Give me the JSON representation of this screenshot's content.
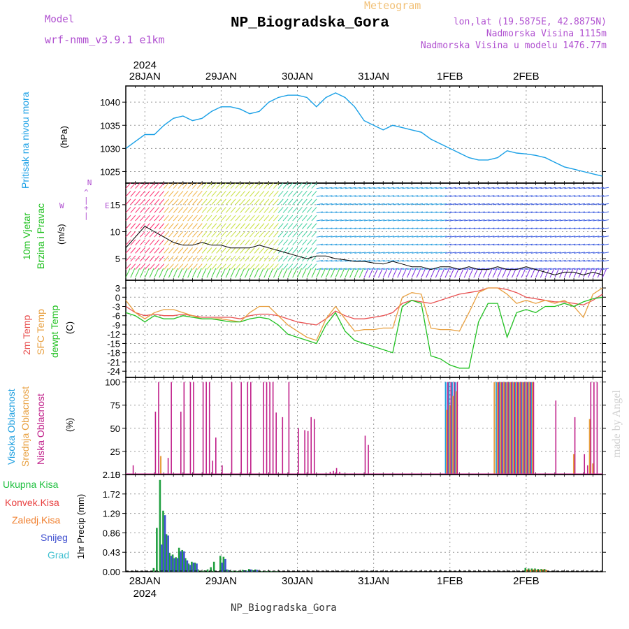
{
  "header": {
    "model_label": "Model",
    "model_name": "wrf-nmm_v3.9.1 e1km",
    "meteogram_label": "Meteogram",
    "station_title": "NP_Biogradska_Gora",
    "lonlat": "lon,lat (19.5875E, 42.8875N)",
    "altitude": "Nadmorska Visina 1115m",
    "model_altitude": "Nadmorska Visina u modelu 1476.77m",
    "footer_station": "NP_Biogradska_Gora",
    "watermark": "made by Angel"
  },
  "time_axis": {
    "year_label": "2024",
    "day_labels": [
      "28JAN",
      "29JAN",
      "30JAN",
      "31JAN",
      "1FEB",
      "2FEB"
    ],
    "day_positions_hours": [
      6,
      30,
      54,
      78,
      102,
      126
    ],
    "range_hours": [
      0,
      150
    ]
  },
  "panel_labels": {
    "pressure": {
      "name": "Pritisak na nivou mora",
      "unit": "(hPa)"
    },
    "wind": {
      "name1": "10m Vjetar",
      "name2": "Brzina i Pravac",
      "unit": "(m/s)",
      "compass_n": "N",
      "compass_e": "E",
      "compass_w": "W"
    },
    "temperature": {
      "name1": "2m Temp",
      "name2": "SFC Temp",
      "name3": "dewpt Temp",
      "unit": "(C)"
    },
    "cloud": {
      "name1": "Visoka Oblacnost",
      "name2": "Srednja Oblacnost",
      "name3": "Niska Oblacnost",
      "unit": "(%)"
    },
    "precip": {
      "names": [
        "Ukupna Kisa",
        "Konvek.Kisa",
        "Zaledj.Kisa",
        "Snijeg",
        "Grad"
      ],
      "unit": "1hr Precip (mm)"
    }
  },
  "colors": {
    "pressure": "#1aa0e6",
    "temp2m": "#e85050",
    "sfc": "#e8a040",
    "dewpt": "#20c020",
    "cloud_high": "#20a0e0",
    "cloud_mid": "#e8a040",
    "cloud_low": "#c0208a",
    "precip_total": "#20a040",
    "precip_conv": "#e84040",
    "precip_frz": "#f08030",
    "precip_snow": "#4050d0",
    "precip_hail": "#40c0d0"
  },
  "chart_data": [
    {
      "type": "line",
      "id": "pressure",
      "title": "Pritisak na nivou mora",
      "ylabel": "(hPa)",
      "ylim": [
        1022.5,
        1043.5
      ],
      "yticks": [
        1025,
        1030,
        1035,
        1040
      ],
      "grid": true,
      "series": [
        {
          "name": "Pritisak na nivou mora",
          "x": [
            0,
            3,
            6,
            9,
            12,
            15,
            18,
            21,
            24,
            27,
            30,
            33,
            36,
            39,
            42,
            45,
            48,
            51,
            54,
            57,
            60,
            63,
            66,
            69,
            72,
            75,
            78,
            81,
            84,
            87,
            90,
            93,
            96,
            99,
            102,
            105,
            108,
            111,
            114,
            117,
            120,
            123,
            126,
            129,
            132,
            135,
            138,
            141,
            144,
            147,
            150
          ],
          "y": [
            1030.0,
            1031.5,
            1033.0,
            1033.0,
            1035.0,
            1036.5,
            1037.0,
            1036.0,
            1036.5,
            1038.0,
            1039.0,
            1039.0,
            1038.5,
            1037.5,
            1038.0,
            1040.0,
            1041.0,
            1041.5,
            1041.5,
            1041.0,
            1039.0,
            1041.0,
            1042.0,
            1041.0,
            1039.0,
            1036.0,
            1035.0,
            1034.0,
            1035.0,
            1034.5,
            1034.0,
            1033.5,
            1032.0,
            1031.0,
            1030.0,
            1029.0,
            1028.0,
            1027.5,
            1027.5,
            1028.0,
            1029.5,
            1029.0,
            1028.8,
            1028.5,
            1028.0,
            1027.0,
            1026.0,
            1025.5,
            1025.0,
            1024.5,
            1024.0
          ]
        }
      ]
    },
    {
      "type": "line",
      "id": "wind",
      "title": "10m Vjetar Brzina i Pravac",
      "ylabel": "(m/s)",
      "ylim": [
        1,
        19
      ],
      "yticks": [
        5,
        10,
        15
      ],
      "grid": true,
      "series": [
        {
          "name": "10m Vjetar",
          "x": [
            0,
            3,
            6,
            9,
            12,
            15,
            18,
            21,
            24,
            27,
            30,
            33,
            36,
            39,
            42,
            45,
            48,
            51,
            54,
            57,
            60,
            63,
            66,
            69,
            72,
            75,
            78,
            81,
            84,
            87,
            90,
            93,
            96,
            99,
            102,
            105,
            108,
            111,
            114,
            117,
            120,
            123,
            126,
            129,
            132,
            135,
            138,
            141,
            144,
            147,
            150
          ],
          "y": [
            7,
            9,
            11,
            10,
            9,
            8,
            7.5,
            7.5,
            8,
            7.5,
            7.5,
            7,
            7,
            7,
            7.5,
            7,
            6.5,
            6,
            5.5,
            5,
            5.5,
            5.5,
            5,
            4.8,
            4.5,
            4.5,
            4.2,
            4,
            4.5,
            4,
            3.5,
            3.5,
            3,
            3.5,
            3.5,
            3,
            3.5,
            3,
            3,
            3.5,
            3,
            3,
            3.5,
            3,
            2.5,
            2,
            2.5,
            2.5,
            2,
            2.5,
            2
          ]
        }
      ]
    },
    {
      "type": "line",
      "id": "temperature",
      "title": "2m Temp / SFC Temp / dewpt Temp",
      "ylabel": "(C)",
      "ylim": [
        -26,
        5.5
      ],
      "yticks": [
        -24,
        -21,
        -18,
        -15,
        -12,
        -9,
        -6,
        -3,
        0,
        3
      ],
      "grid": true,
      "series": [
        {
          "name": "2m Temp",
          "x": [
            0,
            3,
            6,
            9,
            12,
            15,
            18,
            21,
            24,
            27,
            30,
            33,
            36,
            39,
            42,
            45,
            48,
            51,
            54,
            57,
            60,
            63,
            66,
            69,
            72,
            75,
            78,
            81,
            84,
            87,
            90,
            93,
            96,
            99,
            102,
            105,
            108,
            111,
            114,
            117,
            120,
            123,
            126,
            129,
            132,
            135,
            138,
            141,
            144,
            147,
            150
          ],
          "y": [
            -3,
            -5,
            -6,
            -5.5,
            -6,
            -6,
            -5.5,
            -6,
            -6.5,
            -6.5,
            -6.5,
            -6.5,
            -7,
            -6,
            -5.5,
            -5.5,
            -6,
            -7,
            -8,
            -8.5,
            -9,
            -7,
            -4.5,
            -6,
            -7,
            -7,
            -6.5,
            -6,
            -5,
            -2,
            -1,
            -1.5,
            -2,
            -1,
            0,
            1,
            1.5,
            2,
            3,
            3,
            2.5,
            1.5,
            0,
            -0.5,
            -1,
            -1.5,
            -1.5,
            -2,
            -2.5,
            -1,
            1
          ]
        },
        {
          "name": "SFC Temp",
          "x": [
            0,
            3,
            6,
            9,
            12,
            15,
            18,
            21,
            24,
            27,
            30,
            33,
            36,
            39,
            42,
            45,
            48,
            51,
            54,
            57,
            60,
            63,
            66,
            69,
            72,
            75,
            78,
            81,
            84,
            87,
            90,
            93,
            96,
            99,
            102,
            105,
            108,
            111,
            114,
            117,
            120,
            123,
            126,
            129,
            132,
            135,
            138,
            141,
            144,
            147,
            150
          ],
          "y": [
            -1,
            -5,
            -7,
            -5,
            -4,
            -4,
            -5,
            -6,
            -7,
            -7,
            -7,
            -7.5,
            -8,
            -5,
            -3,
            -3,
            -6,
            -9,
            -11,
            -13,
            -14,
            -7,
            -3,
            -7,
            -11,
            -10.5,
            -10.5,
            -10,
            -10,
            0,
            1.5,
            1,
            -10,
            -10.5,
            -10.5,
            -11,
            -5,
            1.5,
            3,
            3,
            1,
            -2,
            -1,
            -2,
            -1,
            -2,
            -1,
            -3,
            -6.5,
            1,
            3
          ]
        },
        {
          "name": "dewpt Temp",
          "x": [
            0,
            3,
            6,
            9,
            12,
            15,
            18,
            21,
            24,
            27,
            30,
            33,
            36,
            39,
            42,
            45,
            48,
            51,
            54,
            57,
            60,
            63,
            66,
            69,
            72,
            75,
            78,
            81,
            84,
            87,
            90,
            93,
            96,
            99,
            102,
            105,
            108,
            111,
            114,
            117,
            120,
            123,
            126,
            129,
            132,
            135,
            138,
            141,
            144,
            147,
            150
          ],
          "y": [
            -5,
            -6,
            -8,
            -6,
            -7,
            -7,
            -6,
            -6.5,
            -7,
            -7,
            -7.5,
            -8,
            -8,
            -7,
            -6.5,
            -7,
            -9,
            -12,
            -13,
            -14,
            -15,
            -9,
            -5,
            -11,
            -14,
            -15,
            -16,
            -17,
            -18,
            -3,
            -1,
            -2,
            -19,
            -20,
            -22,
            -23,
            -23,
            -8,
            -2,
            -2,
            -13,
            -5,
            -4,
            -5,
            -3,
            -3,
            -2,
            -3,
            -1.5,
            -0.5,
            0
          ]
        }
      ]
    },
    {
      "type": "bar",
      "id": "cloud",
      "title": "Oblacnost",
      "ylabel": "(%)",
      "ylim": [
        0,
        105
      ],
      "yticks": [
        0,
        25,
        50,
        75,
        100
      ],
      "grid": true,
      "series": [
        {
          "name": "Visoka Oblacnost",
          "x": [
            101,
            102,
            103,
            104,
            117,
            118,
            119,
            120,
            121,
            122,
            123,
            124,
            125,
            126,
            127,
            128
          ],
          "y": [
            100,
            100,
            100,
            100,
            100,
            100,
            100,
            100,
            100,
            100,
            100,
            100,
            100,
            100,
            100,
            100
          ]
        },
        {
          "name": "Srednja Oblacnost",
          "x": [
            11,
            101,
            102,
            103,
            104,
            116,
            117,
            118,
            119,
            120,
            121,
            122,
            123,
            124,
            125,
            126,
            127,
            128,
            141,
            146,
            147
          ],
          "y": [
            20,
            70,
            75,
            85,
            90,
            100,
            100,
            100,
            100,
            100,
            100,
            100,
            100,
            100,
            100,
            100,
            100,
            100,
            22,
            60,
            12
          ]
        },
        {
          "name": "Niska Oblacnost",
          "x": [
            2,
            9,
            10,
            13,
            14,
            17,
            18,
            20,
            21,
            24,
            25,
            26,
            27,
            28,
            30,
            33,
            36,
            38,
            39,
            43,
            44,
            45,
            46,
            47,
            49,
            51,
            54,
            56,
            57,
            58,
            59,
            64,
            65,
            66,
            67,
            75,
            76,
            101,
            102,
            103,
            104,
            117,
            118,
            119,
            120,
            121,
            122,
            123,
            124,
            125,
            126,
            127,
            128,
            135,
            141,
            144,
            145,
            146,
            147,
            148
          ],
          "y": [
            10,
            68,
            100,
            18,
            100,
            68,
            100,
            100,
            100,
            100,
            100,
            100,
            15,
            40,
            10,
            100,
            100,
            100,
            100,
            100,
            100,
            100,
            100,
            67,
            62,
            100,
            50,
            48,
            47,
            62,
            60,
            3,
            4,
            7,
            3,
            42,
            32,
            100,
            100,
            100,
            100,
            100,
            100,
            100,
            100,
            100,
            100,
            100,
            100,
            100,
            100,
            100,
            100,
            80,
            62,
            22,
            10,
            100,
            100,
            100
          ]
        }
      ]
    },
    {
      "type": "bar",
      "id": "precip",
      "title": "1hr Precip",
      "ylabel": "1hr Precip (mm)",
      "ylim": [
        0,
        2.15
      ],
      "yticks": [
        0,
        0.43,
        0.86,
        1.29,
        1.72,
        2.15
      ],
      "grid": true,
      "series": [
        {
          "name": "Ukupna Kisa",
          "x": [
            9,
            10,
            11,
            12,
            13,
            14,
            15,
            16,
            17,
            18,
            19,
            20,
            21,
            22,
            23,
            24,
            25,
            26,
            27,
            28,
            30,
            31,
            32,
            33,
            34,
            35,
            36,
            37,
            38,
            39,
            40,
            41,
            42,
            43,
            44,
            45,
            46,
            47,
            48,
            126,
            127,
            128,
            129,
            130,
            131,
            132
          ],
          "y": [
            0.08,
            0.97,
            2.03,
            1.35,
            0.83,
            0.42,
            0.38,
            0.32,
            0.53,
            0.48,
            0.3,
            0.18,
            0.22,
            0.2,
            0.05,
            0.02,
            0.03,
            0.05,
            0.1,
            0.22,
            0.35,
            0.33,
            0.05,
            0.03,
            0.02,
            0.02,
            0.02,
            0.04,
            0.03,
            0.06,
            0.04,
            0.05,
            0.02,
            0.01,
            0.01,
            0.02,
            0.01,
            0.01,
            0.01,
            0.08,
            0.07,
            0.07,
            0.07,
            0.06,
            0.06,
            0.06
          ]
        },
        {
          "name": "Konvek.Kisa",
          "x": [],
          "y": []
        },
        {
          "name": "Zaledj.Kisa",
          "x": [
            126,
            127,
            128,
            129,
            130,
            131,
            132
          ],
          "y": [
            0.05,
            0.04,
            0.05,
            0.04,
            0.04,
            0.05,
            0.04
          ]
        },
        {
          "name": "Snijeg",
          "x": [
            11,
            12,
            13,
            14,
            15,
            16,
            17,
            18,
            19,
            20,
            21,
            22,
            30,
            31,
            32,
            37,
            38,
            39,
            40,
            41
          ],
          "y": [
            0.6,
            1.25,
            0.8,
            0.35,
            0.3,
            0.3,
            0.45,
            0.45,
            0.25,
            0.15,
            0.2,
            0.18,
            0.2,
            0.28,
            0.04,
            0.03,
            0.02,
            0.05,
            0.03,
            0.04
          ]
        },
        {
          "name": "Grad",
          "x": [],
          "y": []
        }
      ]
    }
  ]
}
